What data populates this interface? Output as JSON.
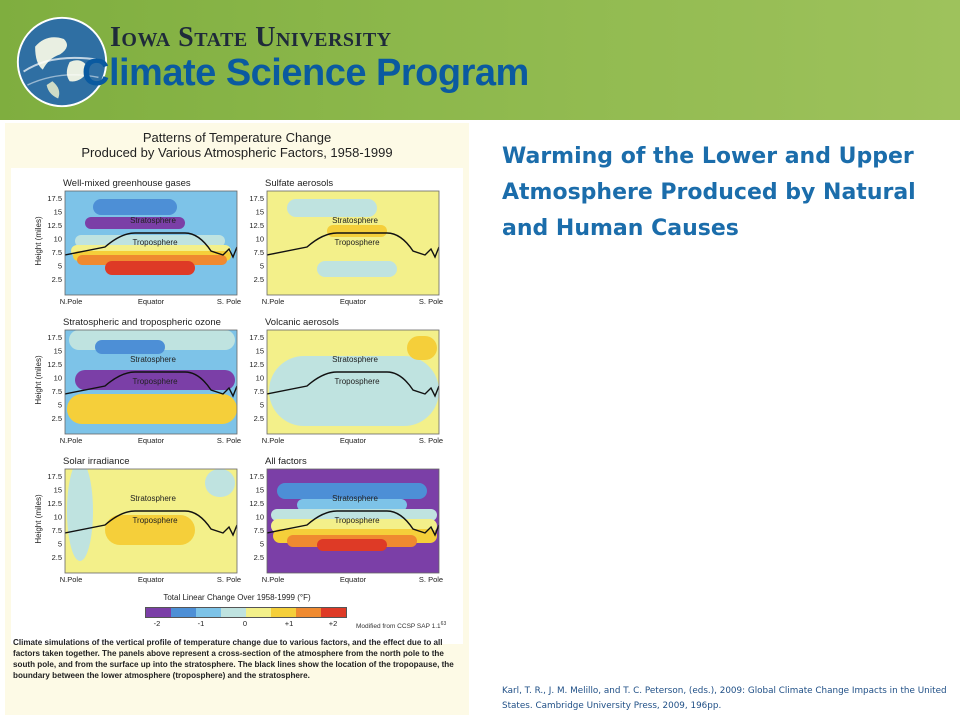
{
  "header": {
    "university": "Iowa State University",
    "program": "Climate Science Program",
    "logo": "globe-logo-icon",
    "colors": {
      "banner": "#8db84c",
      "university_text": "#1f2a3a",
      "program_text": "#0a5aa0"
    }
  },
  "figure": {
    "title_line1": "Patterns of Temperature Change",
    "title_line2": "Produced by Various Atmospheric Factors, 1958-1999",
    "y_axis_label": "Height (miles)",
    "y_ticks": [
      "17.5",
      "15",
      "12.5",
      "10",
      "7.5",
      "5",
      "2.5"
    ],
    "x_ticks": [
      "N.Pole",
      "Equator",
      "S. Pole"
    ],
    "panels": [
      {
        "title": "Well-mixed greenhouse gases",
        "upper_label": "Stratosphere",
        "lower_label": "Troposphere"
      },
      {
        "title": "Sulfate aerosols",
        "upper_label": "Stratosphere",
        "lower_label": "Troposphere"
      },
      {
        "title": "Stratospheric and tropospheric ozone",
        "upper_label": "Stratosphere",
        "lower_label": "Troposphere"
      },
      {
        "title": "Volcanic aerosols",
        "upper_label": "Stratosphere",
        "lower_label": "Troposphere"
      },
      {
        "title": "Solar irradiance",
        "upper_label": "Stratosphere",
        "lower_label": "Troposphere"
      },
      {
        "title": "All factors",
        "upper_label": "Stratosphere",
        "lower_label": "Troposphere"
      }
    ],
    "scale_title": "Total Linear Change Over 1958-1999 (°F)",
    "scale_ticks": [
      "-2",
      "-1",
      "0",
      "+1",
      "+2"
    ],
    "scale_colors": [
      "#7b3fa7",
      "#4d8fd6",
      "#7dc3e8",
      "#bfe3e0",
      "#f3f08a",
      "#f5cf3a",
      "#ef8a30",
      "#de3a26"
    ],
    "credit": "Modified from CCSP SAP 1.1",
    "credit_ref": "63",
    "caption": "Climate simulations of the vertical profile of temperature change due to various factors, and the effect due to all factors taken together. The panels above represent a cross-section of the atmosphere from the north pole to the south pole, and from the surface up into the stratosphere. The black lines show the location of the tropopause, the boundary between the lower atmosphere (troposphere) and the stratosphere."
  },
  "slide": {
    "title": "Warming of the Lower and Upper Atmosphere Produced by Natural and Human Causes",
    "citation": "Karl, T. R., J. M. Melillo, and T. C. Peterson, (eds.), 2009: Global Climate Change Impacts in the United States. Cambridge University Press, 2009, 196pp.",
    "title_color": "#1b6dab"
  }
}
